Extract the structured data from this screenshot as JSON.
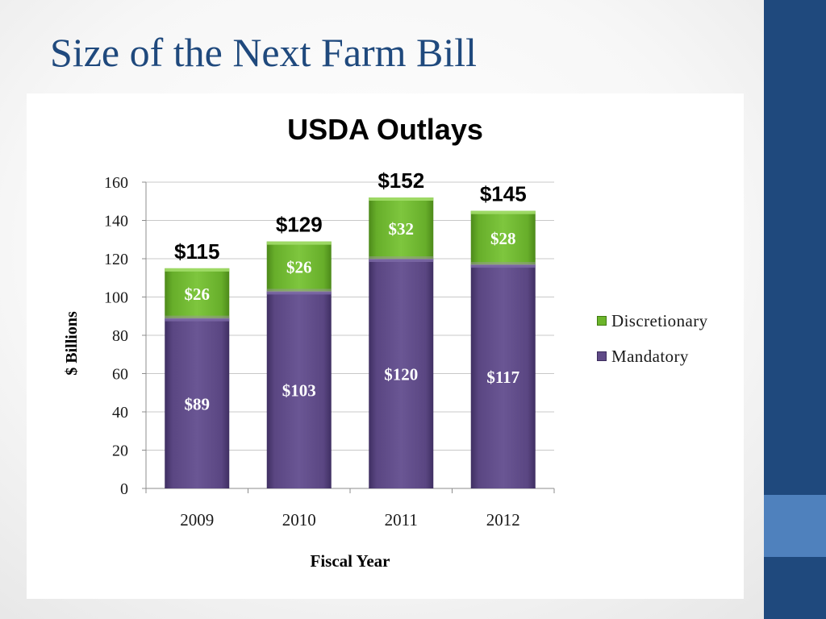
{
  "slide": {
    "title": "Size of the Next Farm Bill"
  },
  "colors": {
    "title_text": "#1f497d",
    "right_band": "#1f497d",
    "right_accent": "#4f81bd",
    "discretionary": "#6cb52a",
    "mandatory": "#5f4a87"
  },
  "chart_data": {
    "type": "bar",
    "stacked": true,
    "title": "USDA Outlays",
    "xlabel": "Fiscal Year",
    "ylabel": "$ Billions",
    "ylim": [
      0,
      160
    ],
    "yticks": [
      0,
      20,
      40,
      60,
      80,
      100,
      120,
      140,
      160
    ],
    "categories": [
      "2009",
      "2010",
      "2011",
      "2012"
    ],
    "series": [
      {
        "name": "Mandatory",
        "values": [
          89,
          103,
          120,
          117
        ],
        "labels": [
          "$89",
          "$103",
          "$120",
          "$117"
        ]
      },
      {
        "name": "Discretionary",
        "values": [
          26,
          26,
          32,
          28
        ],
        "labels": [
          "$26",
          "$26",
          "$32",
          "$28"
        ]
      }
    ],
    "totals": [
      "$115",
      "$129",
      "$152",
      "$145"
    ],
    "grid": true,
    "legend_position": "right"
  }
}
